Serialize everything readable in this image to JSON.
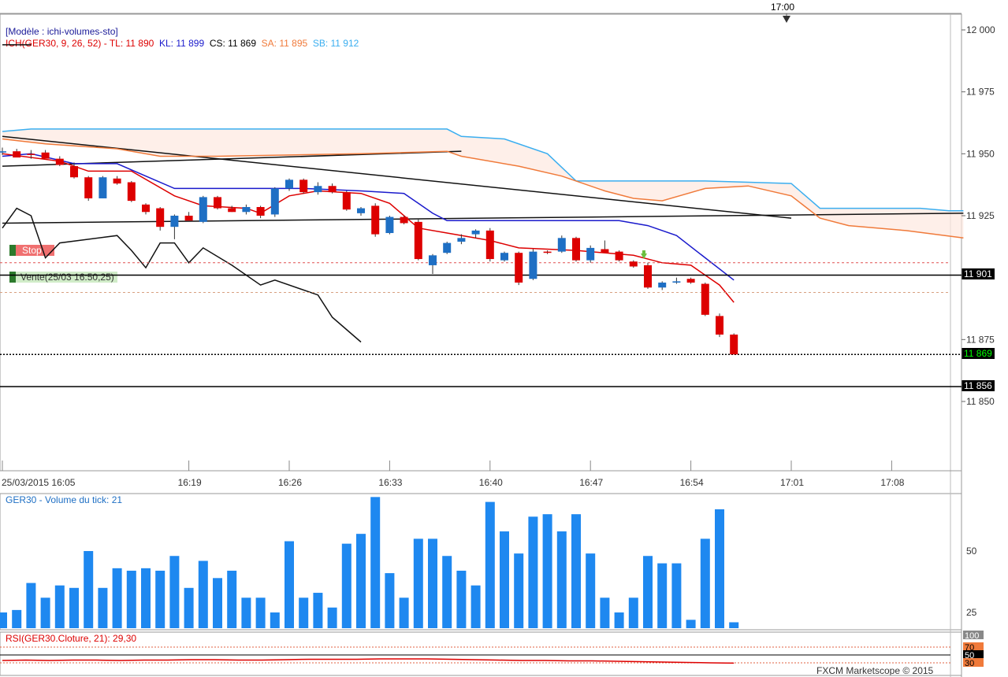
{
  "header": {
    "template_label": "[Modèle : ichi-volumes-sto]",
    "ichimoku_label": "ICH(GER30, 9, 26, 52) - ",
    "tl": "TL: 11 890",
    "kl": "KL: 11 899",
    "cs": "CS: 11 869",
    "sa": "SA: 11 895",
    "sb": "SB: 11 912",
    "top_time": "17:00"
  },
  "orders": {
    "stop_label": "Stop",
    "sell_label": "Vente(25/03 16:50,25)"
  },
  "price_tags": {
    "level_a": "11 901",
    "current": "11 869",
    "level_b": "11 856"
  },
  "colors": {
    "bull": "#1e6fc4",
    "bear": "#dd0000",
    "tenkan": "#dd0000",
    "kijun": "#1a1acc",
    "senkou_a": "#f07a3a",
    "senkou_b": "#3aaef0",
    "volume": "#1e88f0",
    "rsi": "#dd0000",
    "cloud": "#fde8e0"
  },
  "volume_panel": {
    "title": "GER30 - Volume du tick: 21"
  },
  "rsi_panel": {
    "title": "RSI(GER30.Cloture, 21): 29,30"
  },
  "footer": {
    "copyright": "FXCM Marketscope © 2015"
  },
  "chart_data": [
    {
      "type": "candlestick",
      "title": "ICH(GER30, 9, 26, 52)",
      "y_ticks": [
        "12 000",
        "11 975",
        "11 950",
        "11 925",
        "11 875",
        "11 850"
      ],
      "y_tick_values": [
        12000,
        11975,
        11950,
        11925,
        11875,
        11850
      ],
      "ylim": [
        11827,
        12000
      ],
      "x_ticks": [
        "25/03/2015 16:05",
        "16:19",
        "16:26",
        "16:33",
        "16:40",
        "16:47",
        "16:54",
        "17:01",
        "17:08"
      ],
      "x_tick_index": [
        0,
        13,
        20,
        27,
        34,
        41,
        48,
        55,
        62
      ],
      "candles": [
        {
          "o": 11950.5,
          "h": 11952.5,
          "l": 11949.5,
          "c": 11951.0
        },
        {
          "o": 11951.0,
          "h": 11952.0,
          "l": 11949.0,
          "c": 11948.5
        },
        {
          "o": 11950.0,
          "h": 11951.5,
          "l": 11948.0,
          "c": 11949.5
        },
        {
          "o": 11950.5,
          "h": 11951.5,
          "l": 11948.5,
          "c": 11948.0
        },
        {
          "o": 11948.0,
          "h": 11949.0,
          "l": 11945.0,
          "c": 11945.5
        },
        {
          "o": 11945.0,
          "h": 11946.5,
          "l": 11940.0,
          "c": 11940.5
        },
        {
          "o": 11940.5,
          "h": 11941.0,
          "l": 11931.0,
          "c": 11932.0
        },
        {
          "o": 11932.0,
          "h": 11941.0,
          "l": 11932.0,
          "c": 11940.5
        },
        {
          "o": 11940.0,
          "h": 11941.0,
          "l": 11937.5,
          "c": 11938.0
        },
        {
          "o": 11938.5,
          "h": 11939.0,
          "l": 11930.5,
          "c": 11931.0
        },
        {
          "o": 11929.5,
          "h": 11930.0,
          "l": 11925.5,
          "c": 11926.5
        },
        {
          "o": 11928.0,
          "h": 11928.5,
          "l": 11919.0,
          "c": 11920.5
        },
        {
          "o": 11920.5,
          "h": 11925.5,
          "l": 11915.5,
          "c": 11925.0
        },
        {
          "o": 11925.0,
          "h": 11926.5,
          "l": 11923.5,
          "c": 11923.0
        },
        {
          "o": 11922.5,
          "h": 11933.0,
          "l": 11922.0,
          "c": 11932.5
        },
        {
          "o": 11932.5,
          "h": 11933.0,
          "l": 11927.5,
          "c": 11928.0
        },
        {
          "o": 11928.0,
          "h": 11929.0,
          "l": 11926.5,
          "c": 11926.5
        },
        {
          "o": 11926.5,
          "h": 11929.5,
          "l": 11925.5,
          "c": 11928.5
        },
        {
          "o": 11928.5,
          "h": 11929.0,
          "l": 11924.0,
          "c": 11925.0
        },
        {
          "o": 11925.5,
          "h": 11936.5,
          "l": 11924.5,
          "c": 11936.0
        },
        {
          "o": 11936.0,
          "h": 11940.0,
          "l": 11935.0,
          "c": 11939.5
        },
        {
          "o": 11939.5,
          "h": 11940.0,
          "l": 11934.0,
          "c": 11934.5
        },
        {
          "o": 11934.5,
          "h": 11938.5,
          "l": 11933.5,
          "c": 11937.0
        },
        {
          "o": 11937.0,
          "h": 11938.0,
          "l": 11934.0,
          "c": 11934.5
        },
        {
          "o": 11934.5,
          "h": 11935.0,
          "l": 11927.0,
          "c": 11927.5
        },
        {
          "o": 11926.0,
          "h": 11928.5,
          "l": 11925.0,
          "c": 11928.0
        },
        {
          "o": 11929.0,
          "h": 11930.0,
          "l": 11916.5,
          "c": 11917.5
        },
        {
          "o": 11918.0,
          "h": 11925.0,
          "l": 11917.5,
          "c": 11924.5
        },
        {
          "o": 11924.5,
          "h": 11925.0,
          "l": 11921.5,
          "c": 11922.0
        },
        {
          "o": 11922.5,
          "h": 11923.5,
          "l": 11907.0,
          "c": 11907.5
        },
        {
          "o": 11905.0,
          "h": 11909.5,
          "l": 11901.5,
          "c": 11909.0
        },
        {
          "o": 11910.0,
          "h": 11914.5,
          "l": 11909.5,
          "c": 11914.0
        },
        {
          "o": 11914.5,
          "h": 11917.5,
          "l": 11913.5,
          "c": 11916.0
        },
        {
          "o": 11917.5,
          "h": 11919.5,
          "l": 11916.0,
          "c": 11919.0
        },
        {
          "o": 11919.0,
          "h": 11920.0,
          "l": 11906.5,
          "c": 11907.5
        },
        {
          "o": 11907.0,
          "h": 11910.5,
          "l": 11906.5,
          "c": 11910.0
        },
        {
          "o": 11910.0,
          "h": 11910.5,
          "l": 11897.0,
          "c": 11898.0
        },
        {
          "o": 11899.5,
          "h": 11911.5,
          "l": 11899.0,
          "c": 11910.5
        },
        {
          "o": 11910.5,
          "h": 11911.0,
          "l": 11909.5,
          "c": 11910.0
        },
        {
          "o": 11910.5,
          "h": 11917.0,
          "l": 11910.0,
          "c": 11916.0
        },
        {
          "o": 11916.0,
          "h": 11916.5,
          "l": 11906.5,
          "c": 11907.0
        },
        {
          "o": 11907.0,
          "h": 11913.0,
          "l": 11906.0,
          "c": 11912.0
        },
        {
          "o": 11911.5,
          "h": 11915.0,
          "l": 11910.0,
          "c": 11910.0
        },
        {
          "o": 11910.5,
          "h": 11911.0,
          "l": 11906.5,
          "c": 11907.0
        },
        {
          "o": 11906.5,
          "h": 11907.0,
          "l": 11904.0,
          "c": 11904.5
        },
        {
          "o": 11905.0,
          "h": 11906.0,
          "l": 11895.5,
          "c": 11896.0
        },
        {
          "o": 11896.0,
          "h": 11898.5,
          "l": 11895.0,
          "c": 11898.0
        },
        {
          "o": 11898.0,
          "h": 11900.0,
          "l": 11897.5,
          "c": 11898.5
        },
        {
          "o": 11899.5,
          "h": 11900.0,
          "l": 11897.5,
          "c": 11898.0
        },
        {
          "o": 11897.5,
          "h": 11898.0,
          "l": 11884.5,
          "c": 11885.0
        },
        {
          "o": 11884.5,
          "h": 11885.5,
          "l": 11876.0,
          "c": 11877.0
        },
        {
          "o": 11877.0,
          "h": 11877.5,
          "l": 11869.0,
          "c": 11869.0
        }
      ],
      "tenkan": [
        [
          0,
          11950
        ],
        [
          4,
          11947
        ],
        [
          6,
          11943
        ],
        [
          9,
          11943
        ],
        [
          12,
          11933
        ],
        [
          14,
          11929
        ],
        [
          17,
          11928
        ],
        [
          18,
          11926
        ],
        [
          20,
          11933
        ],
        [
          22,
          11935
        ],
        [
          25,
          11934
        ],
        [
          27,
          11930
        ],
        [
          29,
          11920
        ],
        [
          31,
          11918
        ],
        [
          34,
          11915
        ],
        [
          36,
          11912
        ],
        [
          40,
          11911
        ],
        [
          44,
          11909
        ],
        [
          46,
          11906
        ],
        [
          48,
          11905
        ],
        [
          50,
          11897
        ],
        [
          51,
          11890
        ]
      ],
      "kijun": [
        [
          0,
          11949
        ],
        [
          2,
          11950
        ],
        [
          5,
          11946
        ],
        [
          8,
          11946
        ],
        [
          10,
          11941
        ],
        [
          12,
          11936
        ],
        [
          18,
          11936
        ],
        [
          21,
          11936
        ],
        [
          25,
          11935
        ],
        [
          28,
          11934
        ],
        [
          29,
          11930
        ],
        [
          30,
          11926
        ],
        [
          31,
          11923
        ],
        [
          36,
          11923
        ],
        [
          43,
          11923
        ],
        [
          45,
          11921
        ],
        [
          47,
          11917
        ],
        [
          49,
          11908
        ],
        [
          51,
          11899
        ]
      ],
      "senkou_a": [
        [
          0,
          11956
        ],
        [
          3,
          11954
        ],
        [
          8,
          11952
        ],
        [
          11,
          11949
        ],
        [
          15,
          11949
        ],
        [
          25,
          11950
        ],
        [
          31,
          11951
        ],
        [
          32,
          11949
        ],
        [
          36,
          11945
        ],
        [
          39,
          11941
        ],
        [
          42,
          11935
        ],
        [
          44,
          11932
        ],
        [
          46,
          11931
        ],
        [
          49,
          11936
        ],
        [
          52,
          11937
        ],
        [
          55,
          11933
        ],
        [
          57,
          11924
        ],
        [
          59,
          11921
        ],
        [
          63,
          11919
        ],
        [
          67,
          11916
        ]
      ],
      "senkou_b": [
        [
          0,
          11959
        ],
        [
          2,
          11960
        ],
        [
          16,
          11960
        ],
        [
          31,
          11960
        ],
        [
          32,
          11957
        ],
        [
          35,
          11956
        ],
        [
          38,
          11950
        ],
        [
          40,
          11939
        ],
        [
          49,
          11939
        ],
        [
          55,
          11938
        ],
        [
          56,
          11933
        ],
        [
          57,
          11928
        ],
        [
          64,
          11928
        ],
        [
          66,
          11927
        ],
        [
          67,
          11927
        ]
      ],
      "chikou": [
        [
          0,
          11920
        ],
        [
          1,
          11928
        ],
        [
          2,
          11925
        ],
        [
          3,
          11908
        ],
        [
          4,
          11914
        ],
        [
          8,
          11917
        ],
        [
          9,
          11911
        ],
        [
          10,
          11904
        ],
        [
          11,
          11914
        ],
        [
          12,
          11914
        ],
        [
          13,
          11906
        ],
        [
          14,
          11912
        ],
        [
          16,
          11905
        ],
        [
          18,
          11897
        ],
        [
          19,
          11899
        ],
        [
          22,
          11893
        ],
        [
          23,
          11884
        ],
        [
          25,
          11874
        ]
      ],
      "trend_lines": [
        {
          "from": [
            0,
            11957
          ],
          "to": [
            55,
            11924
          ]
        },
        {
          "from": [
            0,
            11945
          ],
          "to": [
            32,
            11951
          ]
        },
        {
          "from": [
            0,
            11922
          ],
          "to": [
            67,
            11926
          ]
        },
        {
          "from": [
            0,
            11994
          ],
          "to": [
            2,
            11994
          ]
        }
      ],
      "levels": {
        "stop": 11906,
        "sell_marker": 11894,
        "level_a": 11901,
        "current": 11869,
        "level_b": 11856
      }
    },
    {
      "type": "bar",
      "title": "GER30 - Volume du tick: 21",
      "y_ticks": [
        "50",
        "25"
      ],
      "y_tick_values": [
        50,
        25
      ],
      "ylim": [
        19,
        72
      ],
      "values": [
        25,
        26,
        37,
        31,
        36,
        35,
        50,
        35,
        43,
        42,
        43,
        42,
        48,
        35,
        46,
        39,
        42,
        31,
        31,
        25,
        54,
        31,
        33,
        27,
        53,
        57,
        72,
        41,
        31,
        55,
        55,
        48,
        42,
        36,
        70,
        58,
        49,
        64,
        65,
        58,
        65,
        49,
        31,
        25,
        31,
        48,
        45,
        45,
        22,
        55,
        67,
        21
      ]
    },
    {
      "type": "line",
      "title": "RSI(GER30.Cloture, 21): 29,30",
      "y_ticks": [
        "100",
        "70",
        "50",
        "30"
      ],
      "y_tick_values": [
        100,
        70,
        50,
        30
      ],
      "ylim": [
        30,
        100
      ],
      "values": [
        36,
        37,
        36,
        37,
        37,
        36,
        37,
        37,
        38,
        38,
        37,
        37,
        38,
        39,
        39,
        39,
        40,
        40,
        40,
        39,
        38,
        37,
        36,
        36,
        35,
        35,
        34,
        33,
        32,
        31,
        30,
        29.3
      ]
    }
  ]
}
